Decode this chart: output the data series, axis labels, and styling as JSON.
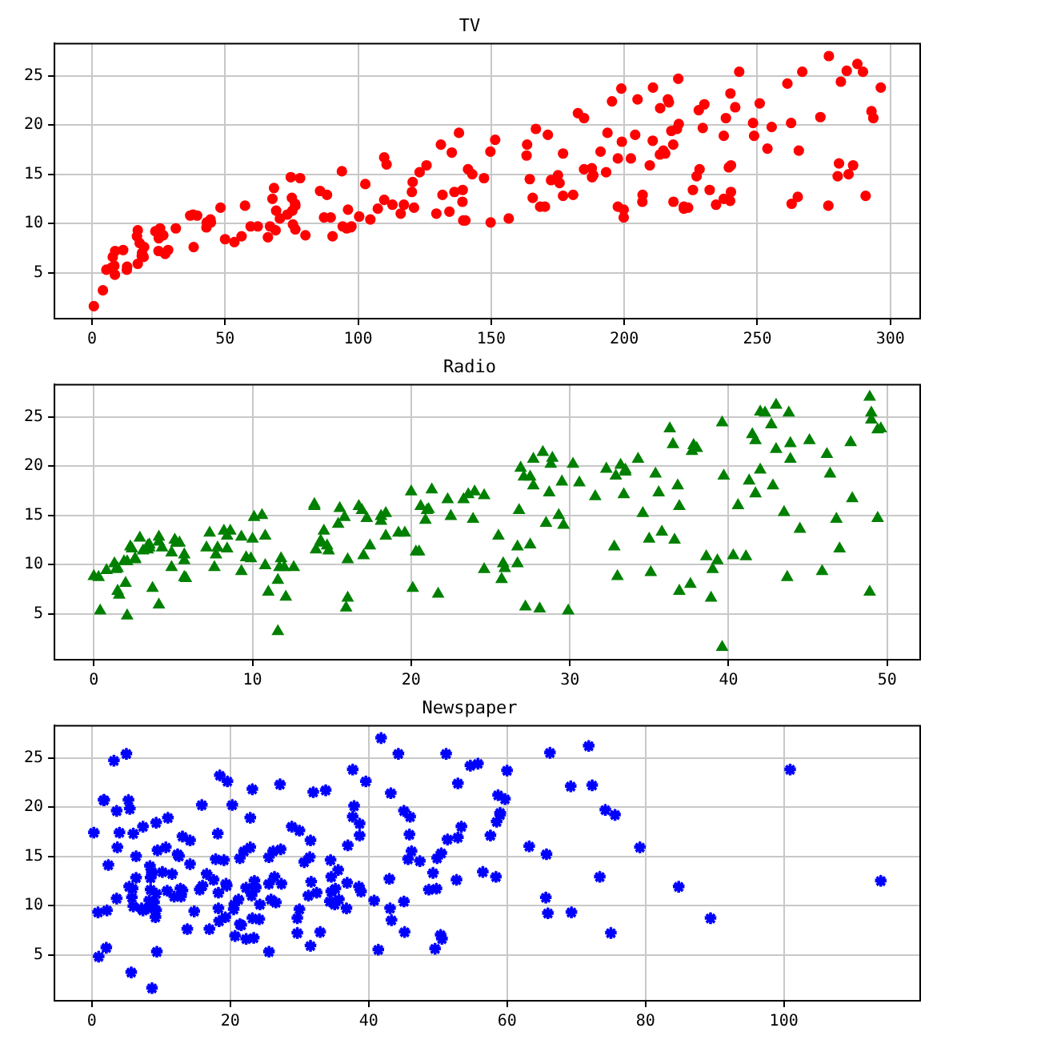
{
  "chart_data": [
    {
      "type": "scatter",
      "title": "TV",
      "color": "#ff0000",
      "marker": "circle",
      "grid": true,
      "xlim": [
        -14.1,
        311.2
      ],
      "xticks": [
        0,
        50,
        100,
        150,
        200,
        250,
        300
      ],
      "ylim": [
        0.33,
        28.27
      ],
      "yticks": [
        5,
        10,
        15,
        20,
        25
      ],
      "x": [
        230.1,
        44.5,
        17.2,
        151.5,
        180.8,
        8.7,
        57.5,
        120.2,
        8.6,
        199.8,
        66.1,
        214.7,
        23.8,
        97.5,
        204.1,
        195.4,
        67.8,
        281.4,
        69.2,
        147.3,
        218.4,
        237.4,
        13.2,
        228.3,
        62.3,
        262.9,
        142.9,
        240.1,
        248.8,
        70.6,
        292.9,
        112.9,
        97.2,
        265.6,
        95.7,
        290.7,
        266.9,
        74.7,
        43.1,
        228,
        202.5,
        177,
        293.6,
        206.9,
        25.1,
        175.1,
        89.7,
        239.9,
        227.2,
        66.9,
        199.8,
        100.4,
        216.4,
        182.6,
        262.7,
        198.9,
        7.3,
        136.2,
        210.8,
        210.7,
        53.5,
        261.3,
        239.3,
        102.7,
        131.1,
        69,
        31.5,
        139.3,
        237.4,
        216.8,
        199.1,
        109.8,
        26.8,
        129.4,
        213.4,
        16.9,
        27.5,
        120.5,
        5.4,
        116,
        76.4,
        239.8,
        75.3,
        68.4,
        213.5,
        193.2,
        76.3,
        110.7,
        88.3,
        109.8,
        134.3,
        28.6,
        217.7,
        250.9,
        107.4,
        163.3,
        197.6,
        184.9,
        289.7,
        135.2,
        222.4,
        296.4,
        280.2,
        187.9,
        238.2,
        137.9,
        25,
        90.4,
        13.1,
        255.4,
        225.8,
        241.7,
        175.7,
        209.6,
        78.2,
        75.1,
        139.2,
        76.4,
        125.7,
        19.4,
        141.3,
        18.8,
        224,
        123.1,
        229.5,
        87.2,
        7.8,
        80.2,
        220.3,
        59.6,
        0.7,
        265.2,
        8.4,
        219.8,
        36.9,
        48.3,
        25.6,
        273.7,
        43,
        184.9,
        73.4,
        193.7,
        220.5,
        104.6,
        96.2,
        140.3,
        240.1,
        243.2,
        38,
        44.7,
        280.7,
        121,
        197.6,
        171.3,
        187.8,
        4.1,
        93.9,
        149.8,
        11.7,
        131.7,
        172.5,
        85.7,
        188.4,
        163.5,
        117.2,
        234.5,
        17.9,
        206.8,
        215.4,
        284.3,
        50,
        164.5,
        19.6,
        168.4,
        222.4,
        276.9,
        248.4,
        170.2,
        276.7,
        165.6,
        156.6,
        218.5,
        56.2,
        287.6,
        253.8,
        205,
        139.5,
        191.1,
        286,
        18.7,
        39.5,
        75.5,
        17.2,
        166.8,
        149.7,
        38.2,
        94.2,
        177,
        283.6,
        232.1
      ],
      "values": [
        22.1,
        10.4,
        9.3,
        18.5,
        12.9,
        7.2,
        11.8,
        13.2,
        4.8,
        10.6,
        8.6,
        17.4,
        9.2,
        9.7,
        19,
        22.4,
        12.5,
        24.4,
        11.3,
        14.6,
        18,
        12.5,
        5.6,
        15.5,
        9.7,
        12,
        15,
        15.9,
        18.9,
        10.5,
        21.4,
        11.9,
        9.6,
        17.4,
        9.5,
        12.8,
        25.4,
        14.7,
        10.1,
        21.5,
        16.6,
        17.1,
        20.7,
        12.9,
        8.5,
        14.9,
        10.6,
        23.2,
        14.8,
        9.7,
        11.4,
        10.7,
        22.6,
        21.2,
        20.2,
        23.7,
        5.5,
        13.2,
        23.8,
        18.4,
        8.1,
        24.2,
        15.7,
        14,
        18,
        9.3,
        9.5,
        13.4,
        18.9,
        22.3,
        18.3,
        12.4,
        8.8,
        11,
        17,
        8.7,
        6.9,
        14.2,
        5.3,
        11,
        11.8,
        12.3,
        11.3,
        13.6,
        21.7,
        15.2,
        12,
        16,
        12.9,
        16.7,
        11.2,
        7.3,
        19.4,
        22.2,
        11.5,
        16.9,
        11.7,
        15.5,
        25.4,
        17.2,
        11.7,
        23.8,
        14.8,
        14.7,
        20.7,
        19.2,
        7.2,
        8.7,
        5.3,
        19.8,
        13.4,
        21.8,
        14.1,
        15.9,
        14.6,
        12.6,
        12.2,
        9.4,
        15.9,
        6.6,
        15.5,
        7,
        11.6,
        15.2,
        19.7,
        10.6,
        6.6,
        8.8,
        24.7,
        9.7,
        1.6,
        12.7,
        5.7,
        19.6,
        10.8,
        11.6,
        9.5,
        20.8,
        9.6,
        20.7,
        10.9,
        19.2,
        20.1,
        10.4,
        11.4,
        10.3,
        13.2,
        25.4,
        10.9,
        10.1,
        16.1,
        11.6,
        16.6,
        19,
        15.6,
        3.2,
        15.3,
        10.1,
        7.3,
        12.9,
        14.4,
        13.3,
        14.9,
        18,
        11.9,
        11.9,
        8,
        12.2,
        17.1,
        15,
        8.4,
        14.5,
        7.6,
        11.7,
        11.5,
        27,
        20.2,
        11.7,
        11.8,
        12.6,
        10.5,
        12.2,
        8.7,
        26.2,
        17.6,
        22.6,
        10.3,
        17.3,
        15.9,
        6.7,
        10.8,
        9.9,
        5.9,
        19.6,
        17.3,
        7.6,
        9.7,
        12.8,
        25.5,
        13.4
      ]
    },
    {
      "type": "scatter",
      "title": "Radio",
      "color": "#008000",
      "marker": "triangle",
      "grid": true,
      "xlim": [
        -2.48,
        52.08
      ],
      "xticks": [
        0,
        10,
        20,
        30,
        40,
        50
      ],
      "ylim": [
        0.33,
        28.27
      ],
      "yticks": [
        5,
        10,
        15,
        20,
        25
      ],
      "x": [
        37.8,
        39.3,
        45.9,
        41.3,
        10.8,
        48.9,
        32.8,
        19.6,
        2.1,
        2.6,
        5.8,
        24,
        35.1,
        7.6,
        32.9,
        47.7,
        36.6,
        39.6,
        20.5,
        23.9,
        27.7,
        5.1,
        15.9,
        16.9,
        12.6,
        3.5,
        29.3,
        16.7,
        27.1,
        16,
        28.3,
        17.4,
        1.5,
        20,
        1.4,
        4.1,
        43.8,
        49.4,
        26.7,
        37.7,
        22.3,
        33.4,
        27.7,
        8.4,
        25.7,
        22.5,
        9.9,
        41.5,
        15.8,
        11.7,
        3.1,
        9.6,
        41.7,
        46.2,
        28.8,
        49.4,
        28.1,
        19.2,
        49.6,
        29.5,
        2,
        42.7,
        15.5,
        29.6,
        42.8,
        9.3,
        24.6,
        14.5,
        27.5,
        43.9,
        30.6,
        14.3,
        33,
        5.7,
        24.6,
        43.7,
        1.6,
        28.5,
        29.9,
        7.7,
        26.7,
        4.1,
        20.3,
        44.5,
        43,
        18.4,
        27.5,
        40.6,
        25.5,
        47.8,
        4.9,
        1.5,
        33.5,
        36.5,
        14,
        31.6,
        3.5,
        21,
        42.3,
        41.7,
        4.3,
        36.3,
        10.1,
        17.2,
        34.3,
        46.4,
        11,
        0.3,
        0.4,
        26.9,
        8.2,
        38,
        15.4,
        20.6,
        46.8,
        35,
        14.3,
        0.8,
        36.9,
        16,
        26.8,
        21.7,
        2.4,
        34.6,
        32.3,
        11.8,
        38.9,
        0,
        49,
        12,
        39.6,
        2.9,
        27.2,
        33.5,
        38.6,
        47,
        39,
        28.9,
        25.9,
        43.9,
        17,
        35.4,
        33.2,
        5.7,
        14.8,
        1.9,
        7.3,
        49,
        40.3,
        25.8,
        13.9,
        8.4,
        23.3,
        39.7,
        21.1,
        11.6,
        43.5,
        1.3,
        36.9,
        18.4,
        18.1,
        35.8,
        18.1,
        36.8,
        14.7,
        3.4,
        37.6,
        5.2,
        23.6,
        10.6,
        11.6,
        20.9,
        20.1,
        7.1,
        3.4,
        48.9,
        30.2,
        7.8,
        2.3,
        10,
        2.6,
        5.4,
        5.7,
        43,
        21.3,
        45.1,
        2.1,
        28.7,
        13.9,
        12.1,
        41.1,
        10.8,
        4.1,
        42,
        35.6,
        3.7,
        4.9,
        9.3,
        42,
        8.6
      ],
      "values": [
        22.1,
        10.4,
        9.3,
        18.5,
        12.9,
        7.2,
        11.8,
        13.2,
        4.8,
        10.6,
        8.6,
        17.4,
        9.2,
        9.7,
        19,
        22.4,
        12.5,
        24.4,
        11.3,
        14.6,
        18,
        12.5,
        5.6,
        15.5,
        9.7,
        12,
        15,
        15.9,
        18.9,
        10.5,
        21.4,
        11.9,
        9.6,
        17.4,
        9.5,
        12.8,
        25.4,
        14.7,
        10.1,
        21.5,
        16.6,
        17.1,
        20.7,
        12.9,
        8.5,
        14.9,
        10.6,
        23.2,
        14.8,
        9.7,
        11.4,
        10.7,
        22.6,
        21.2,
        20.2,
        23.7,
        5.5,
        13.2,
        23.8,
        18.4,
        8.1,
        24.2,
        15.7,
        14,
        18,
        9.3,
        9.5,
        13.4,
        18.9,
        22.3,
        18.3,
        12.4,
        8.8,
        11,
        17,
        8.7,
        6.9,
        14.2,
        5.3,
        11,
        11.8,
        12.3,
        11.3,
        13.6,
        21.7,
        15.2,
        12,
        16,
        12.9,
        16.7,
        11.2,
        7.3,
        19.4,
        22.2,
        11.5,
        16.9,
        11.7,
        15.5,
        25.4,
        17.2,
        11.7,
        23.8,
        14.8,
        14.7,
        20.7,
        19.2,
        7.2,
        8.7,
        5.3,
        19.8,
        13.4,
        21.8,
        14.1,
        15.9,
        14.6,
        12.6,
        12.2,
        9.4,
        15.9,
        6.6,
        15.5,
        7,
        11.6,
        15.2,
        19.7,
        10.6,
        6.6,
        8.8,
        24.7,
        9.7,
        1.6,
        12.7,
        5.7,
        19.6,
        10.8,
        11.6,
        9.5,
        20.8,
        9.6,
        20.7,
        10.9,
        19.2,
        20.1,
        10.4,
        11.4,
        10.3,
        13.2,
        25.4,
        10.9,
        10.1,
        16.1,
        11.6,
        16.6,
        19,
        15.6,
        3.2,
        15.3,
        10.1,
        7.3,
        12.9,
        14.4,
        13.3,
        14.9,
        18,
        11.9,
        11.9,
        8,
        12.2,
        17.1,
        15,
        8.4,
        14.5,
        7.6,
        11.7,
        11.5,
        27,
        20.2,
        11.7,
        11.8,
        12.6,
        10.5,
        12.2,
        8.7,
        26.2,
        17.6,
        22.6,
        10.3,
        17.3,
        15.9,
        6.7,
        10.8,
        9.9,
        5.9,
        19.6,
        17.3,
        7.6,
        9.7,
        12.8,
        25.5,
        13.4
      ]
    },
    {
      "type": "scatter",
      "title": "Newspaper",
      "color": "#0000ff",
      "marker": "star",
      "grid": true,
      "xlim": [
        -5.39,
        119.69
      ],
      "xticks": [
        0,
        20,
        40,
        60,
        80,
        100
      ],
      "ylim": [
        0.33,
        28.27
      ],
      "yticks": [
        5,
        10,
        15,
        20,
        25
      ],
      "x": [
        69.2,
        45.1,
        69.3,
        58.5,
        58.4,
        75,
        23.5,
        11.6,
        1,
        21.2,
        24.2,
        4,
        65.9,
        7.2,
        46,
        52.9,
        114,
        55.8,
        18.3,
        19.1,
        53.4,
        23.5,
        49.6,
        26.2,
        18.3,
        19.5,
        12.6,
        22.9,
        22.9,
        40.8,
        43.2,
        38.6,
        30,
        0.3,
        7.4,
        8.5,
        5,
        45.7,
        35.1,
        32,
        31.6,
        38.7,
        1.8,
        26.4,
        43.3,
        31.5,
        35.7,
        18.5,
        49.9,
        36.8,
        34.6,
        3.6,
        39.6,
        58.7,
        15.9,
        60,
        41.4,
        16.6,
        37.7,
        9.3,
        21.4,
        54.7,
        27.3,
        8.4,
        28.9,
        0.9,
        2.2,
        10.2,
        11,
        27.2,
        38.7,
        31.7,
        19.3,
        31.3,
        13.1,
        89.4,
        20.7,
        14.2,
        9.4,
        23.1,
        22.3,
        36.9,
        32.5,
        35.6,
        33.8,
        65.7,
        16,
        63.2,
        73.4,
        51.4,
        9.3,
        33,
        59,
        72.3,
        10.9,
        52.9,
        5.9,
        22,
        51.2,
        45.9,
        49.8,
        100.9,
        21.4,
        17.9,
        5.3,
        59,
        29.7,
        23.2,
        25.6,
        5.5,
        56.5,
        23.2,
        2.4,
        10.7,
        34.5,
        52.7,
        25.6,
        14.8,
        79.2,
        22.3,
        46.2,
        50.4,
        15.6,
        12.4,
        74.2,
        25.9,
        50.6,
        9.2,
        3.2,
        43.1,
        8.7,
        43,
        2.1,
        45.1,
        65.6,
        8.5,
        9.3,
        59.7,
        20.5,
        1.7,
        12.9,
        75.6,
        37.9,
        34.4,
        38.9,
        9,
        8.7,
        44.3,
        11.9,
        20.6,
        37,
        48.7,
        14.2,
        37.7,
        9.5,
        5.7,
        50.5,
        24.3,
        45.2,
        34.6,
        30.7,
        49.3,
        25.6,
        7.4,
        5.4,
        84.8,
        21.6,
        19.4,
        57.6,
        6.4,
        18.4,
        47.4,
        17,
        12.8,
        13.1,
        41.8,
        20.3,
        35.2,
        23.7,
        17.6,
        8.3,
        27.4,
        29.7,
        71.8,
        30,
        19.6,
        26.6,
        18.2,
        3.7,
        23.4,
        5.8,
        6,
        31.6,
        3.6,
        6,
        13.8,
        8.1,
        6.4,
        66.2,
        8.7
      ],
      "values": [
        22.1,
        10.4,
        9.3,
        18.5,
        12.9,
        7.2,
        11.8,
        13.2,
        4.8,
        10.6,
        8.6,
        17.4,
        9.2,
        9.7,
        19,
        22.4,
        12.5,
        24.4,
        11.3,
        14.6,
        18,
        12.5,
        5.6,
        15.5,
        9.7,
        12,
        15,
        15.9,
        18.9,
        10.5,
        21.4,
        11.9,
        9.6,
        17.4,
        9.5,
        12.8,
        25.4,
        14.7,
        10.1,
        21.5,
        16.6,
        17.1,
        20.7,
        12.9,
        8.5,
        14.9,
        10.6,
        23.2,
        14.8,
        9.7,
        11.4,
        10.7,
        22.6,
        21.2,
        20.2,
        23.7,
        5.5,
        13.2,
        23.8,
        18.4,
        8.1,
        24.2,
        15.7,
        14,
        18,
        9.3,
        9.5,
        13.4,
        18.9,
        22.3,
        18.3,
        12.4,
        8.8,
        11,
        17,
        8.7,
        6.9,
        14.2,
        5.3,
        11,
        11.8,
        12.3,
        11.3,
        13.6,
        21.7,
        15.2,
        12,
        16,
        12.9,
        16.7,
        11.2,
        7.3,
        19.4,
        22.2,
        11.5,
        16.9,
        11.7,
        15.5,
        25.4,
        17.2,
        11.7,
        23.8,
        14.8,
        14.7,
        20.7,
        19.2,
        7.2,
        8.7,
        5.3,
        19.8,
        13.4,
        21.8,
        14.1,
        15.9,
        14.6,
        12.6,
        12.2,
        9.4,
        15.9,
        6.6,
        15.5,
        7,
        11.6,
        15.2,
        19.7,
        10.6,
        6.6,
        8.8,
        24.7,
        9.7,
        1.6,
        12.7,
        5.7,
        19.6,
        10.8,
        11.6,
        9.5,
        20.8,
        9.6,
        20.7,
        10.9,
        19.2,
        20.1,
        10.4,
        11.4,
        10.3,
        13.2,
        25.4,
        10.9,
        10.1,
        16.1,
        11.6,
        16.6,
        19,
        15.6,
        3.2,
        15.3,
        10.1,
        7.3,
        12.9,
        14.4,
        13.3,
        14.9,
        18,
        11.9,
        11.9,
        8,
        12.2,
        17.1,
        15,
        8.4,
        14.5,
        7.6,
        11.7,
        11.5,
        27,
        20.2,
        11.7,
        11.8,
        12.6,
        10.5,
        12.2,
        8.7,
        26.2,
        17.6,
        22.6,
        10.3,
        17.3,
        15.9,
        6.7,
        10.8,
        9.9,
        5.9,
        19.6,
        17.3,
        7.6,
        9.7,
        12.8,
        25.5,
        13.4
      ]
    }
  ]
}
